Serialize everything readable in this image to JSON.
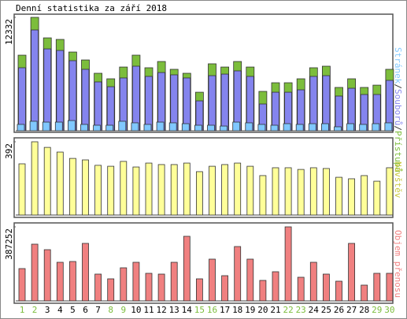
{
  "chart_data": [
    {
      "type": "bar",
      "title": "Denní statistika za září 2018",
      "legend_separator": "/",
      "ylim": [
        0,
        12332
      ],
      "yticks": [
        12332
      ],
      "series": [
        {
          "name": "Stránek",
          "color": "#80c8ff",
          "values": [
            690,
            1030,
            940,
            940,
            1110,
            690,
            600,
            600,
            1030,
            860,
            690,
            940,
            860,
            770,
            600,
            600,
            510,
            940,
            860,
            690,
            600,
            770,
            690,
            770,
            770,
            430,
            770,
            690,
            770,
            860
          ]
        },
        {
          "name": "Souborů",
          "color": "#8484ee",
          "values": [
            6850,
            10960,
            8900,
            8730,
            7620,
            6680,
            5310,
            4790,
            5740,
            7020,
            5910,
            6330,
            6080,
            5740,
            3250,
            5990,
            6160,
            6510,
            5910,
            2910,
            4190,
            4190,
            4450,
            5910,
            5990,
            3770,
            4620,
            3940,
            3940,
            5480
          ]
        },
        {
          "name": "Přístupů",
          "color": "#7cbd3c",
          "values": [
            8218,
            12332,
            10100,
            9930,
            8560,
            7700,
            6250,
            5650,
            6930,
            8220,
            6850,
            7530,
            6680,
            6250,
            4190,
            7280,
            6930,
            7530,
            6930,
            4280,
            5220,
            5220,
            5650,
            6850,
            7020,
            4710,
            5650,
            4710,
            4960,
            6680
          ]
        }
      ]
    },
    {
      "type": "bar",
      "ylim": [
        0,
        392
      ],
      "yticks": [
        392
      ],
      "series": [
        {
          "name": "Návštěv",
          "color": "#ffff99",
          "label_color": "#c8c83c",
          "values": [
            274,
            392,
            362,
            337,
            303,
            295,
            266,
            261,
            287,
            257,
            278,
            270,
            270,
            278,
            232,
            261,
            270,
            278,
            261,
            211,
            253,
            253,
            244,
            253,
            249,
            202,
            194,
            211,
            181,
            253
          ]
        }
      ]
    },
    {
      "type": "bar",
      "ylim": [
        0,
        387252
      ],
      "yticks": [
        387252
      ],
      "series": [
        {
          "name": "Objem přenosu",
          "color": "#f08080",
          "values": [
            168920,
            296640,
            267800,
            201880,
            206000,
            300760,
            140080,
            115360,
            173040,
            201880,
            144200,
            140080,
            201880,
            337840,
            115360,
            218360,
            131840,
            284280,
            218360,
            107120,
            152440,
            387252,
            123600,
            201880,
            140080,
            103000,
            300760,
            82400,
            144200,
            144200
          ]
        }
      ],
      "categories": [
        "1",
        "2",
        "3",
        "4",
        "5",
        "6",
        "7",
        "8",
        "9",
        "10",
        "11",
        "12",
        "13",
        "14",
        "15",
        "16",
        "17",
        "18",
        "19",
        "20",
        "21",
        "22",
        "23",
        "24",
        "25",
        "26",
        "27",
        "28",
        "29",
        "30"
      ],
      "category_colors": [
        "#7cbd3c",
        "#7cbd3c",
        "#000000",
        "#000000",
        "#000000",
        "#000000",
        "#000000",
        "#7cbd3c",
        "#7cbd3c",
        "#000000",
        "#000000",
        "#000000",
        "#000000",
        "#000000",
        "#7cbd3c",
        "#7cbd3c",
        "#000000",
        "#000000",
        "#000000",
        "#000000",
        "#000000",
        "#7cbd3c",
        "#7cbd3c",
        "#000000",
        "#000000",
        "#000000",
        "#000000",
        "#000000",
        "#7cbd3c",
        "#7cbd3c"
      ]
    }
  ]
}
